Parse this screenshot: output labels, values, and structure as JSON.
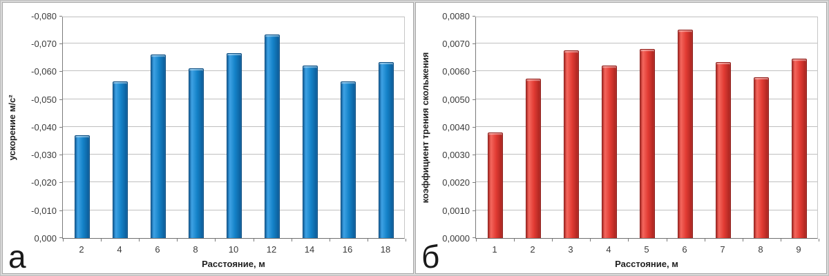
{
  "figure": {
    "description": "Two Excel-style bar charts side by side, panels а and б"
  },
  "chart_data": [
    {
      "type": "bar",
      "panel_label": "а",
      "xlabel": "Расстояние, м",
      "ylabel": "ускорение м/с²",
      "categories": [
        "2",
        "4",
        "6",
        "8",
        "10",
        "12",
        "14",
        "16",
        "18"
      ],
      "values": [
        -0.037,
        -0.0565,
        -0.066,
        -0.061,
        -0.0665,
        -0.0733,
        -0.062,
        -0.0565,
        -0.0633
      ],
      "axis_inverted": true,
      "ylim": [
        0,
        -0.08
      ],
      "ystep": 0.01,
      "ytick_labels_bottom_to_top": [
        "0,000",
        "-0,010",
        "-0,020",
        "-0,030",
        "-0,040",
        "-0,050",
        "-0,060",
        "-0,070",
        "-0,080"
      ],
      "grid": true,
      "legend": null,
      "bar_color": {
        "main": "#1583C9",
        "highlight": "#3FA2E4",
        "edge": "#0B5C99",
        "border": "#0A4C80"
      }
    },
    {
      "type": "bar",
      "panel_label": "б",
      "xlabel": "Расстояние, м",
      "ylabel": "коэффициент трения скольжения",
      "categories": [
        "1",
        "2",
        "3",
        "4",
        "5",
        "6",
        "7",
        "8",
        "9"
      ],
      "values": [
        0.0038,
        0.00575,
        0.00675,
        0.00622,
        0.0068,
        0.0075,
        0.00633,
        0.00578,
        0.00645
      ],
      "axis_inverted": false,
      "ylim": [
        0,
        0.008
      ],
      "ystep": 0.001,
      "ytick_labels_bottom_to_top": [
        "0,0000",
        "0,0010",
        "0,0020",
        "0,0030",
        "0,0040",
        "0,0050",
        "0,0060",
        "0,0070",
        "0,0080"
      ],
      "grid": true,
      "legend": null,
      "bar_color": {
        "main": "#E23B33",
        "highlight": "#F4675E",
        "edge": "#A8241F",
        "border": "#8F1D19"
      }
    }
  ]
}
